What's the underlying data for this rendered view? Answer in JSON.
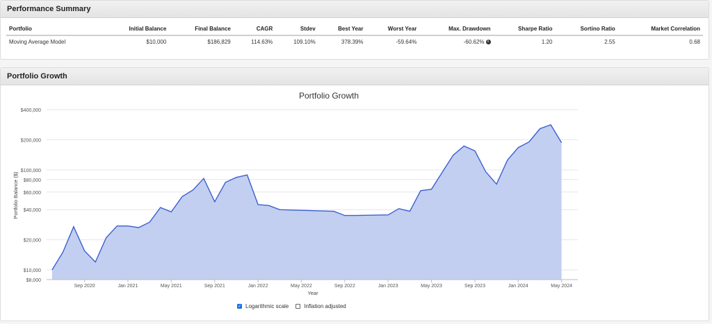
{
  "performance": {
    "title": "Performance Summary",
    "columns": [
      "Portfolio",
      "Initial Balance",
      "Final Balance",
      "CAGR",
      "Stdev",
      "Best Year",
      "Worst Year",
      "Max. Drawdown",
      "Sharpe Ratio",
      "Sortino Ratio",
      "Market Correlation"
    ],
    "row": {
      "portfolio": "Moving Average Model",
      "initial_balance": "$10,000",
      "final_balance": "$186,829",
      "cagr": "114.63%",
      "stdev": "109.10%",
      "best_year": "378.39%",
      "worst_year": "-59.64%",
      "max_drawdown": "-60.62%",
      "sharpe": "1.20",
      "sortino": "2.55",
      "market_corr": "0.68"
    }
  },
  "growth": {
    "title": "Portfolio Growth",
    "controls": {
      "log_label": "Logarithmic scale",
      "log_checked": true,
      "inflation_label": "Inflation adjusted",
      "inflation_checked": false
    }
  },
  "chart_data": {
    "type": "area",
    "title": "Portfolio Growth",
    "xlabel": "Year",
    "ylabel": "Portfolio Balance ($)",
    "log_scale": true,
    "ylim": [
      8000,
      400000
    ],
    "y_ticks": [
      {
        "v": 400000,
        "label": "$400,000"
      },
      {
        "v": 200000,
        "label": "$200,000"
      },
      {
        "v": 100000,
        "label": "$100,000"
      },
      {
        "v": 80000,
        "label": "$80,000"
      },
      {
        "v": 60000,
        "label": "$60,000"
      },
      {
        "v": 40000,
        "label": "$40,000"
      },
      {
        "v": 20000,
        "label": "$20,000"
      },
      {
        "v": 10000,
        "label": "$10,000"
      },
      {
        "v": 8000,
        "label": "$8,000"
      }
    ],
    "x_ticks": [
      {
        "t": 2020.667,
        "label": "Sep 2020"
      },
      {
        "t": 2021.0,
        "label": "Jan 2021"
      },
      {
        "t": 2021.333,
        "label": "May 2021"
      },
      {
        "t": 2021.667,
        "label": "Sep 2021"
      },
      {
        "t": 2022.0,
        "label": "Jan 2022"
      },
      {
        "t": 2022.333,
        "label": "May 2022"
      },
      {
        "t": 2022.667,
        "label": "Sep 2022"
      },
      {
        "t": 2023.0,
        "label": "Jan 2023"
      },
      {
        "t": 2023.333,
        "label": "May 2023"
      },
      {
        "t": 2023.667,
        "label": "Sep 2023"
      },
      {
        "t": 2024.0,
        "label": "Jan 2024"
      },
      {
        "t": 2024.333,
        "label": "May 2024"
      }
    ],
    "xlim": [
      2020.375,
      2024.458
    ],
    "series": [
      {
        "color": "#3b5fd0",
        "fill": "#c3cff0",
        "points": [
          [
            2020.417,
            10000
          ],
          [
            2020.5,
            15000
          ],
          [
            2020.583,
            27000
          ],
          [
            2020.667,
            15500
          ],
          [
            2020.75,
            12000
          ],
          [
            2020.833,
            21000
          ],
          [
            2020.917,
            27500
          ],
          [
            2021.0,
            27500
          ],
          [
            2021.083,
            26500
          ],
          [
            2021.167,
            30000
          ],
          [
            2021.25,
            42000
          ],
          [
            2021.333,
            38000
          ],
          [
            2021.417,
            54000
          ],
          [
            2021.5,
            63000
          ],
          [
            2021.583,
            82000
          ],
          [
            2021.667,
            48000
          ],
          [
            2021.75,
            75000
          ],
          [
            2021.833,
            84000
          ],
          [
            2021.917,
            89000
          ],
          [
            2022.0,
            45000
          ],
          [
            2022.083,
            44000
          ],
          [
            2022.167,
            40000
          ],
          [
            2022.583,
            38500
          ],
          [
            2022.667,
            35000
          ],
          [
            2022.75,
            35000
          ],
          [
            2023.0,
            35500
          ],
          [
            2023.083,
            41000
          ],
          [
            2023.167,
            38500
          ],
          [
            2023.25,
            62000
          ],
          [
            2023.333,
            64000
          ],
          [
            2023.417,
            95000
          ],
          [
            2023.5,
            140000
          ],
          [
            2023.583,
            173000
          ],
          [
            2023.667,
            155000
          ],
          [
            2023.75,
            96000
          ],
          [
            2023.833,
            72000
          ],
          [
            2023.917,
            125000
          ],
          [
            2024.0,
            167000
          ],
          [
            2024.083,
            190000
          ],
          [
            2024.167,
            258000
          ],
          [
            2024.25,
            282000
          ],
          [
            2024.333,
            187000
          ]
        ]
      }
    ]
  }
}
